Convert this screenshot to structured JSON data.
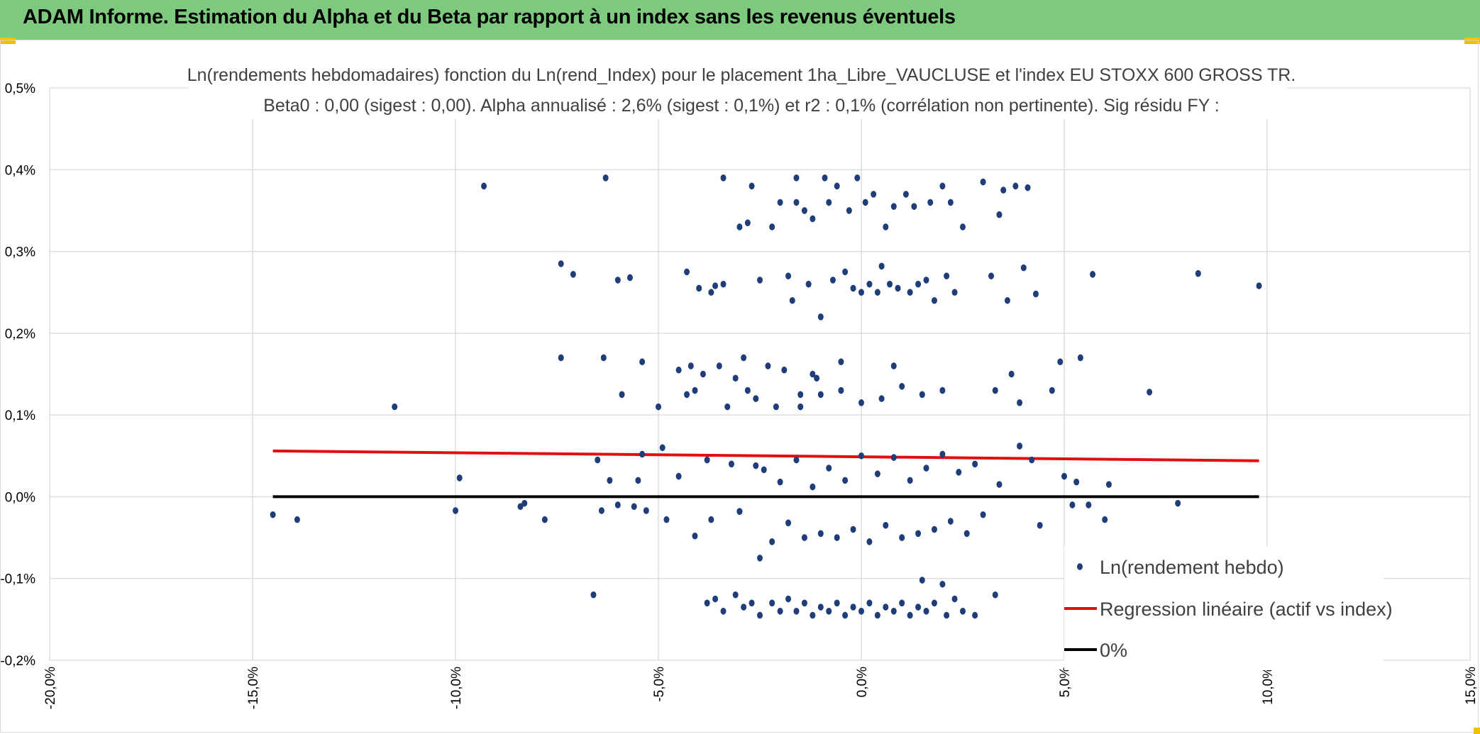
{
  "header": {
    "title": "ADAM Informe. Estimation du Alpha et du Beta par rapport à un index sans les revenus éventuels"
  },
  "colors": {
    "header_bg": "#7dc97d",
    "points": "#1f3d78",
    "regression": "#e01010",
    "zero_line": "#000000",
    "grid": "#d9d9d9"
  },
  "chart_data": {
    "type": "scatter",
    "title_lines": [
      "Ln(rendements hebdomadaires) fonction du Ln(rend_Index) pour le placement 1ha_Libre_VAUCLUSE et l'index EU STOXX 600 GROSS TR.",
      "Beta0 : 0,00 (sigest : 0,00). Alpha annualisé : 2,6% (sigest : 0,1%) et r2 : 0,1% (corrélation non pertinente). Sig résidu FY :"
    ],
    "xlim": [
      -0.2,
      0.15
    ],
    "ylim": [
      -0.002,
      0.005
    ],
    "x_ticks": [
      -0.2,
      -0.15,
      -0.1,
      -0.05,
      0.0,
      0.05,
      0.1,
      0.15
    ],
    "x_tick_labels": [
      "-20,0%",
      "-15,0%",
      "-10,0%",
      "-5,0%",
      "0,0%",
      "5,0%",
      "10,0%",
      "15,0%"
    ],
    "y_ticks": [
      -0.002,
      -0.001,
      0.0,
      0.001,
      0.002,
      0.003,
      0.004,
      0.005
    ],
    "y_tick_labels": [
      "-0,2%",
      "-0,1%",
      "0,0%",
      "0,1%",
      "0,2%",
      "0,3%",
      "0,4%",
      "0,5%"
    ],
    "grid": true,
    "legend_position": "bottom-right",
    "series": [
      {
        "name": "Ln(rendement hebdo)",
        "kind": "scatter",
        "points": [
          [
            -0.145,
            -0.00022
          ],
          [
            -0.139,
            -0.00028
          ],
          [
            -0.115,
            0.0011
          ],
          [
            -0.1,
            -0.00017
          ],
          [
            -0.099,
            0.00023
          ],
          [
            -0.093,
            0.0038
          ],
          [
            -0.084,
            -0.00012
          ],
          [
            -0.083,
            -8e-05
          ],
          [
            -0.078,
            -0.00028
          ],
          [
            -0.074,
            0.0017
          ],
          [
            -0.074,
            0.00285
          ],
          [
            -0.071,
            0.00272
          ],
          [
            -0.066,
            -0.0012
          ],
          [
            -0.065,
            0.00045
          ],
          [
            -0.064,
            -0.00017
          ],
          [
            -0.0635,
            0.0017
          ],
          [
            -0.063,
            0.0039
          ],
          [
            -0.062,
            0.0002
          ],
          [
            -0.06,
            -0.0001
          ],
          [
            -0.06,
            0.00265
          ],
          [
            -0.059,
            0.00125
          ],
          [
            -0.057,
            0.00268
          ],
          [
            -0.056,
            -0.00012
          ],
          [
            -0.055,
            0.0002
          ],
          [
            -0.054,
            0.00052
          ],
          [
            -0.054,
            0.00165
          ],
          [
            -0.053,
            -0.00017
          ],
          [
            -0.05,
            0.0011
          ],
          [
            -0.049,
            0.0006
          ],
          [
            -0.048,
            -0.00028
          ],
          [
            -0.045,
            0.00025
          ],
          [
            -0.045,
            0.00155
          ],
          [
            -0.043,
            0.00125
          ],
          [
            -0.043,
            0.00275
          ],
          [
            -0.042,
            0.0016
          ],
          [
            -0.041,
            -0.00048
          ],
          [
            -0.041,
            0.0013
          ],
          [
            -0.04,
            0.00255
          ],
          [
            -0.039,
            0.0015
          ],
          [
            -0.038,
            0.00045
          ],
          [
            -0.037,
            -0.00028
          ],
          [
            -0.037,
            0.0025
          ],
          [
            -0.036,
            0.00258
          ],
          [
            -0.035,
            0.0016
          ],
          [
            -0.034,
            0.0026
          ],
          [
            -0.034,
            0.0039
          ],
          [
            -0.033,
            0.0011
          ],
          [
            -0.032,
            0.0004
          ],
          [
            -0.031,
            0.00145
          ],
          [
            -0.03,
            -0.00018
          ],
          [
            -0.03,
            0.0033
          ],
          [
            -0.029,
            0.0017
          ],
          [
            -0.028,
            0.0013
          ],
          [
            -0.028,
            0.00335
          ],
          [
            -0.027,
            0.0038
          ],
          [
            -0.026,
            0.0012
          ],
          [
            -0.025,
            -0.00075
          ],
          [
            -0.025,
            0.00265
          ],
          [
            -0.024,
            0.00033
          ],
          [
            -0.023,
            0.0016
          ],
          [
            -0.022,
            0.0033
          ],
          [
            -0.021,
            0.0011
          ],
          [
            -0.02,
            0.0036
          ],
          [
            -0.019,
            0.00155
          ],
          [
            -0.018,
            0.0027
          ],
          [
            -0.017,
            0.0024
          ],
          [
            -0.016,
            0.0036
          ],
          [
            -0.016,
            0.0039
          ],
          [
            -0.015,
            0.00125
          ],
          [
            -0.014,
            0.0035
          ],
          [
            -0.013,
            0.0026
          ],
          [
            -0.012,
            0.0034
          ],
          [
            -0.011,
            0.00145
          ],
          [
            -0.01,
            0.0022
          ],
          [
            -0.009,
            0.0039
          ],
          [
            -0.008,
            0.0036
          ],
          [
            -0.007,
            0.00265
          ],
          [
            -0.006,
            0.0038
          ],
          [
            -0.005,
            0.00165
          ],
          [
            -0.004,
            0.00275
          ],
          [
            -0.003,
            0.0035
          ],
          [
            -0.002,
            0.00255
          ],
          [
            -0.001,
            0.0039
          ],
          [
            0.0,
            0.0025
          ],
          [
            0.001,
            0.0036
          ],
          [
            0.002,
            0.0026
          ],
          [
            0.003,
            0.0037
          ],
          [
            0.004,
            0.0025
          ],
          [
            0.005,
            0.00282
          ],
          [
            0.006,
            0.0033
          ],
          [
            0.007,
            0.0026
          ],
          [
            0.008,
            0.00355
          ],
          [
            0.009,
            0.00255
          ],
          [
            0.011,
            0.0037
          ],
          [
            0.012,
            0.0025
          ],
          [
            0.013,
            0.00355
          ],
          [
            0.014,
            0.0026
          ],
          [
            0.016,
            0.00265
          ],
          [
            0.017,
            0.0036
          ],
          [
            0.018,
            0.0024
          ],
          [
            0.02,
            0.0038
          ],
          [
            0.021,
            0.0027
          ],
          [
            0.022,
            0.0036
          ],
          [
            0.023,
            0.0025
          ],
          [
            0.025,
            0.0033
          ],
          [
            0.03,
            0.00385
          ],
          [
            0.032,
            0.0027
          ],
          [
            0.033,
            0.0013
          ],
          [
            0.034,
            0.00345
          ],
          [
            0.035,
            0.00375
          ],
          [
            0.036,
            0.0024
          ],
          [
            0.037,
            0.0015
          ],
          [
            0.038,
            0.0038
          ],
          [
            0.039,
            0.00115
          ],
          [
            0.04,
            0.0028
          ],
          [
            0.041,
            0.00378
          ],
          [
            0.042,
            0.00045
          ],
          [
            0.043,
            0.00248
          ],
          [
            0.044,
            -0.00035
          ],
          [
            0.047,
            0.0013
          ],
          [
            0.049,
            0.00165
          ],
          [
            0.05,
            0.00025
          ],
          [
            0.052,
            -0.0001
          ],
          [
            0.053,
            0.00018
          ],
          [
            0.054,
            0.0017
          ],
          [
            0.056,
            -0.0001
          ],
          [
            0.057,
            0.00272
          ],
          [
            0.06,
            -0.00028
          ],
          [
            0.061,
            0.00015
          ],
          [
            0.071,
            0.00128
          ],
          [
            0.078,
            -8e-05
          ],
          [
            0.083,
            0.00273
          ],
          [
            0.098,
            0.00258
          ],
          [
            -0.038,
            -0.0013
          ],
          [
            -0.036,
            -0.00125
          ],
          [
            -0.034,
            -0.0014
          ],
          [
            -0.031,
            -0.0012
          ],
          [
            -0.029,
            -0.00135
          ],
          [
            -0.027,
            -0.0013
          ],
          [
            -0.025,
            -0.00145
          ],
          [
            -0.022,
            -0.0013
          ],
          [
            -0.02,
            -0.0014
          ],
          [
            -0.018,
            -0.00125
          ],
          [
            -0.016,
            -0.0014
          ],
          [
            -0.014,
            -0.0013
          ],
          [
            -0.012,
            -0.00145
          ],
          [
            -0.01,
            -0.00135
          ],
          [
            -0.008,
            -0.0014
          ],
          [
            -0.006,
            -0.0013
          ],
          [
            -0.004,
            -0.00145
          ],
          [
            -0.002,
            -0.00135
          ],
          [
            0.0,
            -0.0014
          ],
          [
            0.002,
            -0.0013
          ],
          [
            0.004,
            -0.00145
          ],
          [
            0.006,
            -0.00135
          ],
          [
            0.008,
            -0.0014
          ],
          [
            0.01,
            -0.0013
          ],
          [
            0.012,
            -0.00145
          ],
          [
            0.014,
            -0.00135
          ],
          [
            0.015,
            -0.00102
          ],
          [
            0.016,
            -0.0014
          ],
          [
            0.018,
            -0.0013
          ],
          [
            0.02,
            -0.00107
          ],
          [
            0.021,
            -0.00145
          ],
          [
            0.023,
            -0.00125
          ],
          [
            0.025,
            -0.0014
          ],
          [
            0.028,
            -0.00145
          ],
          [
            0.033,
            -0.0012
          ],
          [
            0.039,
            0.00062
          ],
          [
            -0.02,
            0.00018
          ],
          [
            -0.018,
            -0.00032
          ],
          [
            -0.016,
            0.00045
          ],
          [
            -0.014,
            -0.0005
          ],
          [
            -0.012,
            0.00012
          ],
          [
            -0.01,
            -0.00045
          ],
          [
            -0.008,
            0.00035
          ],
          [
            -0.006,
            -0.0005
          ],
          [
            -0.004,
            0.0002
          ],
          [
            -0.002,
            -0.0004
          ],
          [
            0.0,
            0.0005
          ],
          [
            0.002,
            -0.00055
          ],
          [
            0.004,
            0.00028
          ],
          [
            0.006,
            -0.00035
          ],
          [
            0.008,
            0.00048
          ],
          [
            0.01,
            -0.0005
          ],
          [
            0.012,
            0.0002
          ],
          [
            0.014,
            -0.00045
          ],
          [
            0.016,
            0.00035
          ],
          [
            0.018,
            -0.0004
          ],
          [
            0.02,
            0.00052
          ],
          [
            0.022,
            -0.0003
          ],
          [
            0.024,
            0.0003
          ],
          [
            0.026,
            -0.00045
          ],
          [
            0.028,
            0.0004
          ],
          [
            -0.03,
            -0.00018
          ],
          [
            -0.026,
            0.00038
          ],
          [
            -0.022,
            -0.00055
          ],
          [
            0.03,
            -0.00022
          ],
          [
            0.034,
            0.00015
          ],
          [
            -0.015,
            0.0011
          ],
          [
            -0.01,
            0.00125
          ],
          [
            -0.005,
            0.0013
          ],
          [
            0.0,
            0.00115
          ],
          [
            0.005,
            0.0012
          ],
          [
            0.01,
            0.00135
          ],
          [
            0.015,
            0.00125
          ],
          [
            0.02,
            0.0013
          ],
          [
            -0.012,
            0.0015
          ],
          [
            0.008,
            0.0016
          ]
        ]
      },
      {
        "name": "Regression linéaire (actif vs index)",
        "kind": "line",
        "points": [
          [
            -0.145,
            0.00056
          ],
          [
            0.098,
            0.00044
          ]
        ]
      },
      {
        "name": "0%",
        "kind": "line",
        "points": [
          [
            -0.145,
            0.0
          ],
          [
            0.098,
            0.0
          ]
        ]
      }
    ]
  }
}
